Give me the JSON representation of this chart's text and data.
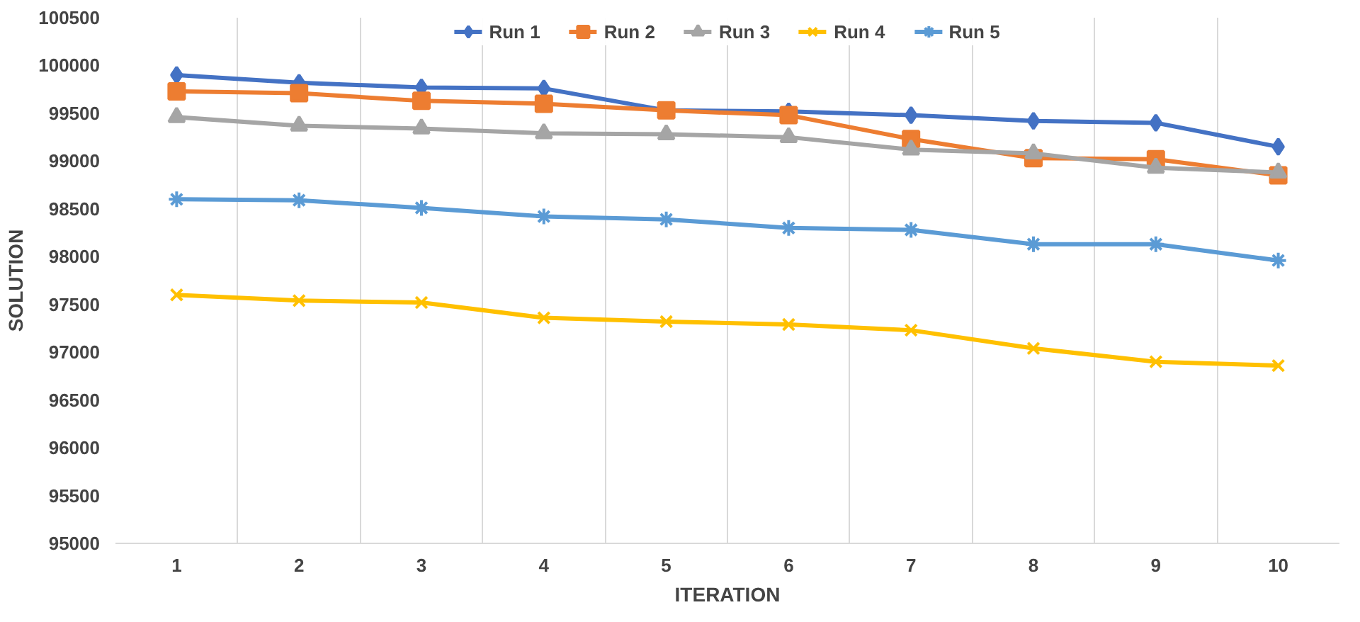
{
  "chart_data": {
    "type": "line",
    "xlabel": "ITERATION",
    "ylabel": "SOLUTION",
    "categories": [
      "1",
      "2",
      "3",
      "4",
      "5",
      "6",
      "7",
      "8",
      "9",
      "10"
    ],
    "ylim": [
      95000,
      100500
    ],
    "yticks": [
      95000,
      95500,
      96000,
      96500,
      97000,
      97500,
      98000,
      98500,
      99000,
      99500,
      100000,
      100500
    ],
    "grid": "x",
    "legend": "top",
    "series": [
      {
        "name": "Run 1",
        "color": "#4472c4",
        "marker": "diamond",
        "values": [
          99900,
          99820,
          99770,
          99760,
          99530,
          99520,
          99480,
          99420,
          99400,
          99150
        ]
      },
      {
        "name": "Run 2",
        "color": "#ed7d31",
        "marker": "square",
        "values": [
          99730,
          99710,
          99630,
          99600,
          99530,
          99480,
          99230,
          99030,
          99020,
          98850
        ]
      },
      {
        "name": "Run 3",
        "color": "#a5a5a5",
        "marker": "triangle",
        "values": [
          99460,
          99370,
          99340,
          99290,
          99280,
          99250,
          99120,
          99080,
          98930,
          98880
        ]
      },
      {
        "name": "Run 4",
        "color": "#ffc000",
        "marker": "x",
        "values": [
          97600,
          97540,
          97520,
          97360,
          97320,
          97290,
          97230,
          97040,
          96900,
          96860
        ]
      },
      {
        "name": "Run 5",
        "color": "#5b9bd5",
        "marker": "cross",
        "values": [
          98600,
          98590,
          98510,
          98420,
          98390,
          98300,
          98280,
          98130,
          98130,
          97960
        ]
      }
    ]
  }
}
